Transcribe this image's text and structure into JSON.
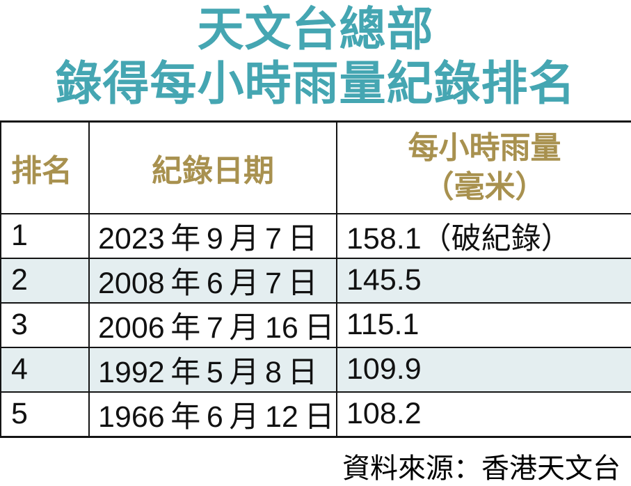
{
  "title": {
    "line1": "天文台總部",
    "line2": "錄得每小時雨量紀錄排名"
  },
  "table": {
    "headers": {
      "rank": "排名",
      "date": "紀錄日期",
      "rainfall_line1": "每小時雨量",
      "rainfall_line2": "（毫米）"
    },
    "rows": [
      {
        "rank": "1",
        "date": "2023 年 9 月 7 日",
        "rainfall": "158.1（破紀錄）"
      },
      {
        "rank": "2",
        "date": "2008 年 6 月 7 日",
        "rainfall": "145.5"
      },
      {
        "rank": "3",
        "date": "2006 年 7 月 16 日",
        "rainfall": "115.1"
      },
      {
        "rank": "4",
        "date": "1992 年 5 月 8 日",
        "rainfall": "109.9"
      },
      {
        "rank": "5",
        "date": "1966 年 6 月 12 日",
        "rainfall": "108.2"
      }
    ]
  },
  "source": "資料來源：香港天文台",
  "colors": {
    "teal": "#45a6b2",
    "gold": "#a8914f",
    "alt_row_bg": "#e4eef0",
    "border": "#141414",
    "text": "#111111"
  },
  "chart_data": {
    "type": "table",
    "title": "天文台總部 錄得每小時雨量紀錄排名",
    "columns": [
      "排名",
      "紀錄日期",
      "每小時雨量（毫米）"
    ],
    "rows": [
      [
        1,
        "2023年9月7日",
        "158.1（破紀錄）"
      ],
      [
        2,
        "2008年6月7日",
        "145.5"
      ],
      [
        3,
        "2006年7月16日",
        "115.1"
      ],
      [
        4,
        "1992年5月8日",
        "109.9"
      ],
      [
        5,
        "1966年6月12日",
        "108.2"
      ]
    ],
    "values_mm": [
      158.1,
      145.5,
      115.1,
      109.9,
      108.2
    ],
    "record_breaking_rank": 1,
    "source": "資料來源：香港天文台"
  }
}
